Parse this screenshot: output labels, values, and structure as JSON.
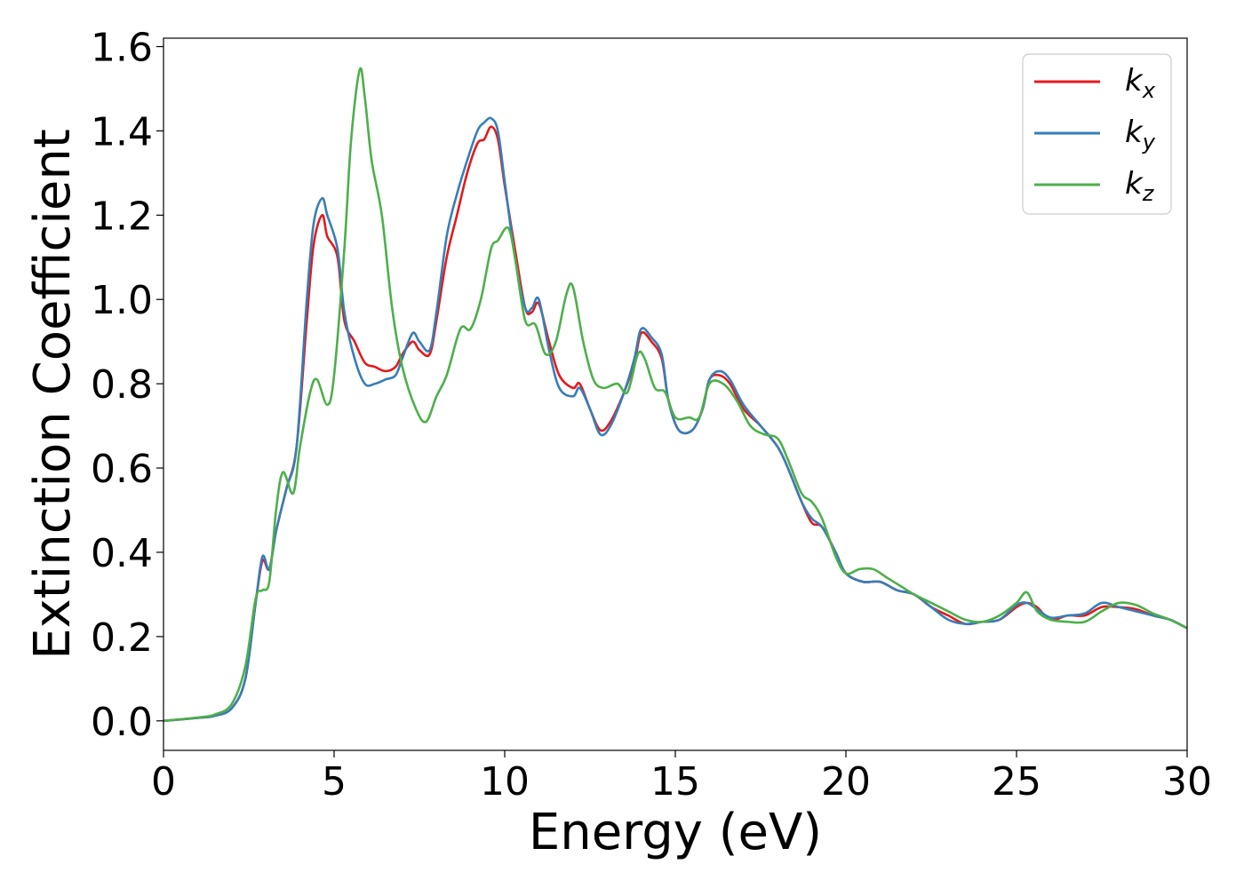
{
  "chart_data": {
    "type": "line",
    "title": "",
    "xlabel": "Energy (eV)",
    "ylabel": "Extinction Coefficient",
    "xlim": [
      0,
      30
    ],
    "ylim": [
      -0.07,
      1.62
    ],
    "xticks": [
      0,
      5,
      10,
      15,
      20,
      25,
      30
    ],
    "xtick_labels": [
      "0",
      "5",
      "10",
      "15",
      "20",
      "25",
      "30"
    ],
    "yticks": [
      0.0,
      0.2,
      0.4,
      0.6,
      0.8,
      1.0,
      1.2,
      1.4,
      1.6
    ],
    "ytick_labels": [
      "0.0",
      "0.2",
      "0.4",
      "0.6",
      "0.8",
      "1.0",
      "1.2",
      "1.4",
      "1.6"
    ],
    "grid": false,
    "legend_position": "top-right",
    "series": [
      {
        "name": "k_x",
        "label_base": "k",
        "label_sub": "x",
        "color": "#e41a1c",
        "points": [
          [
            0,
            0
          ],
          [
            1,
            0.007
          ],
          [
            1.5,
            0.012
          ],
          [
            2,
            0.03
          ],
          [
            2.4,
            0.1
          ],
          [
            2.7,
            0.28
          ],
          [
            2.9,
            0.38
          ],
          [
            3.1,
            0.36
          ],
          [
            3.3,
            0.45
          ],
          [
            3.6,
            0.55
          ],
          [
            3.9,
            0.65
          ],
          [
            4.2,
            0.95
          ],
          [
            4.4,
            1.13
          ],
          [
            4.65,
            1.2
          ],
          [
            4.8,
            1.15
          ],
          [
            5.1,
            1.1
          ],
          [
            5.3,
            0.95
          ],
          [
            5.6,
            0.9
          ],
          [
            5.9,
            0.85
          ],
          [
            6.2,
            0.84
          ],
          [
            6.5,
            0.83
          ],
          [
            6.8,
            0.84
          ],
          [
            7.0,
            0.87
          ],
          [
            7.3,
            0.9
          ],
          [
            7.5,
            0.88
          ],
          [
            7.8,
            0.87
          ],
          [
            8.0,
            0.95
          ],
          [
            8.3,
            1.1
          ],
          [
            8.6,
            1.2
          ],
          [
            8.9,
            1.3
          ],
          [
            9.2,
            1.37
          ],
          [
            9.4,
            1.38
          ],
          [
            9.6,
            1.41
          ],
          [
            9.8,
            1.38
          ],
          [
            10.0,
            1.27
          ],
          [
            10.3,
            1.12
          ],
          [
            10.6,
            0.98
          ],
          [
            10.8,
            0.97
          ],
          [
            11.0,
            0.99
          ],
          [
            11.3,
            0.9
          ],
          [
            11.6,
            0.82
          ],
          [
            12.0,
            0.79
          ],
          [
            12.2,
            0.8
          ],
          [
            12.5,
            0.74
          ],
          [
            12.8,
            0.69
          ],
          [
            13.1,
            0.71
          ],
          [
            13.5,
            0.78
          ],
          [
            13.8,
            0.85
          ],
          [
            14.0,
            0.92
          ],
          [
            14.3,
            0.9
          ],
          [
            14.6,
            0.86
          ],
          [
            14.8,
            0.76
          ],
          [
            15.1,
            0.69
          ],
          [
            15.5,
            0.69
          ],
          [
            15.8,
            0.74
          ],
          [
            16.0,
            0.81
          ],
          [
            16.3,
            0.82
          ],
          [
            16.6,
            0.8
          ],
          [
            17.0,
            0.74
          ],
          [
            17.5,
            0.7
          ],
          [
            18.0,
            0.65
          ],
          [
            18.3,
            0.6
          ],
          [
            18.7,
            0.52
          ],
          [
            19.0,
            0.47
          ],
          [
            19.3,
            0.46
          ],
          [
            19.7,
            0.4
          ],
          [
            20.0,
            0.35
          ],
          [
            20.5,
            0.33
          ],
          [
            21.0,
            0.33
          ],
          [
            21.5,
            0.31
          ],
          [
            22.0,
            0.3
          ],
          [
            22.5,
            0.27
          ],
          [
            23.0,
            0.25
          ],
          [
            23.5,
            0.23
          ],
          [
            24.0,
            0.235
          ],
          [
            24.5,
            0.24
          ],
          [
            25.0,
            0.27
          ],
          [
            25.3,
            0.28
          ],
          [
            25.6,
            0.27
          ],
          [
            26.0,
            0.24
          ],
          [
            26.5,
            0.25
          ],
          [
            27.0,
            0.25
          ],
          [
            27.5,
            0.27
          ],
          [
            28.0,
            0.27
          ],
          [
            28.5,
            0.265
          ],
          [
            29.0,
            0.25
          ],
          [
            29.5,
            0.24
          ],
          [
            30.0,
            0.22
          ]
        ]
      },
      {
        "name": "k_y",
        "label_base": "k",
        "label_sub": "y",
        "color": "#377eb8",
        "points": [
          [
            0,
            0
          ],
          [
            1,
            0.007
          ],
          [
            1.5,
            0.012
          ],
          [
            2,
            0.03
          ],
          [
            2.4,
            0.1
          ],
          [
            2.7,
            0.28
          ],
          [
            2.9,
            0.39
          ],
          [
            3.1,
            0.36
          ],
          [
            3.3,
            0.45
          ],
          [
            3.6,
            0.55
          ],
          [
            3.9,
            0.65
          ],
          [
            4.2,
            1.0
          ],
          [
            4.4,
            1.18
          ],
          [
            4.65,
            1.24
          ],
          [
            4.8,
            1.2
          ],
          [
            5.1,
            1.12
          ],
          [
            5.3,
            0.97
          ],
          [
            5.6,
            0.86
          ],
          [
            5.9,
            0.8
          ],
          [
            6.2,
            0.8
          ],
          [
            6.5,
            0.81
          ],
          [
            6.8,
            0.82
          ],
          [
            7.0,
            0.86
          ],
          [
            7.3,
            0.92
          ],
          [
            7.5,
            0.9
          ],
          [
            7.8,
            0.88
          ],
          [
            8.0,
            0.97
          ],
          [
            8.3,
            1.15
          ],
          [
            8.6,
            1.25
          ],
          [
            8.9,
            1.33
          ],
          [
            9.2,
            1.4
          ],
          [
            9.4,
            1.42
          ],
          [
            9.6,
            1.43
          ],
          [
            9.8,
            1.4
          ],
          [
            10.0,
            1.28
          ],
          [
            10.3,
            1.1
          ],
          [
            10.6,
            0.98
          ],
          [
            10.8,
            0.98
          ],
          [
            11.0,
            1.0
          ],
          [
            11.3,
            0.88
          ],
          [
            11.6,
            0.79
          ],
          [
            12.0,
            0.77
          ],
          [
            12.2,
            0.79
          ],
          [
            12.5,
            0.74
          ],
          [
            12.8,
            0.68
          ],
          [
            13.1,
            0.7
          ],
          [
            13.5,
            0.78
          ],
          [
            13.8,
            0.86
          ],
          [
            14.0,
            0.93
          ],
          [
            14.3,
            0.91
          ],
          [
            14.6,
            0.87
          ],
          [
            14.8,
            0.76
          ],
          [
            15.1,
            0.69
          ],
          [
            15.5,
            0.69
          ],
          [
            15.8,
            0.74
          ],
          [
            16.0,
            0.81
          ],
          [
            16.3,
            0.83
          ],
          [
            16.6,
            0.81
          ],
          [
            17.0,
            0.75
          ],
          [
            17.5,
            0.7
          ],
          [
            18.0,
            0.65
          ],
          [
            18.3,
            0.6
          ],
          [
            18.7,
            0.52
          ],
          [
            19.0,
            0.48
          ],
          [
            19.3,
            0.46
          ],
          [
            19.7,
            0.4
          ],
          [
            20.0,
            0.35
          ],
          [
            20.5,
            0.33
          ],
          [
            21.0,
            0.33
          ],
          [
            21.5,
            0.31
          ],
          [
            22.0,
            0.3
          ],
          [
            22.5,
            0.27
          ],
          [
            23.0,
            0.24
          ],
          [
            23.5,
            0.23
          ],
          [
            24.0,
            0.235
          ],
          [
            24.5,
            0.24
          ],
          [
            25.0,
            0.275
          ],
          [
            25.3,
            0.28
          ],
          [
            25.6,
            0.265
          ],
          [
            26.0,
            0.245
          ],
          [
            26.5,
            0.25
          ],
          [
            27.0,
            0.255
          ],
          [
            27.5,
            0.28
          ],
          [
            28.0,
            0.27
          ],
          [
            28.5,
            0.26
          ],
          [
            29.0,
            0.25
          ],
          [
            29.5,
            0.24
          ],
          [
            30.0,
            0.22
          ]
        ]
      },
      {
        "name": "k_z",
        "label_base": "k",
        "label_sub": "z",
        "color": "#4daf4a",
        "points": [
          [
            0,
            0
          ],
          [
            1,
            0.008
          ],
          [
            1.5,
            0.015
          ],
          [
            2,
            0.04
          ],
          [
            2.4,
            0.13
          ],
          [
            2.7,
            0.29
          ],
          [
            2.9,
            0.31
          ],
          [
            3.1,
            0.33
          ],
          [
            3.3,
            0.5
          ],
          [
            3.5,
            0.59
          ],
          [
            3.8,
            0.54
          ],
          [
            4.0,
            0.65
          ],
          [
            4.3,
            0.78
          ],
          [
            4.5,
            0.81
          ],
          [
            4.8,
            0.75
          ],
          [
            5.0,
            0.82
          ],
          [
            5.3,
            1.12
          ],
          [
            5.5,
            1.38
          ],
          [
            5.75,
            1.545
          ],
          [
            5.9,
            1.48
          ],
          [
            6.1,
            1.33
          ],
          [
            6.4,
            1.2
          ],
          [
            6.7,
            0.98
          ],
          [
            7.0,
            0.84
          ],
          [
            7.4,
            0.74
          ],
          [
            7.7,
            0.71
          ],
          [
            8.0,
            0.77
          ],
          [
            8.3,
            0.82
          ],
          [
            8.7,
            0.93
          ],
          [
            9.0,
            0.93
          ],
          [
            9.3,
            1.0
          ],
          [
            9.6,
            1.12
          ],
          [
            9.8,
            1.14
          ],
          [
            10.1,
            1.17
          ],
          [
            10.3,
            1.1
          ],
          [
            10.6,
            0.95
          ],
          [
            10.9,
            0.94
          ],
          [
            11.2,
            0.87
          ],
          [
            11.5,
            0.9
          ],
          [
            11.8,
            1.01
          ],
          [
            12.0,
            1.03
          ],
          [
            12.3,
            0.9
          ],
          [
            12.6,
            0.81
          ],
          [
            12.9,
            0.79
          ],
          [
            13.3,
            0.8
          ],
          [
            13.6,
            0.78
          ],
          [
            13.9,
            0.87
          ],
          [
            14.1,
            0.86
          ],
          [
            14.4,
            0.79
          ],
          [
            14.7,
            0.78
          ],
          [
            15.0,
            0.72
          ],
          [
            15.4,
            0.72
          ],
          [
            15.7,
            0.72
          ],
          [
            16.0,
            0.8
          ],
          [
            16.4,
            0.8
          ],
          [
            16.8,
            0.76
          ],
          [
            17.2,
            0.7
          ],
          [
            17.6,
            0.68
          ],
          [
            18.0,
            0.67
          ],
          [
            18.3,
            0.62
          ],
          [
            18.7,
            0.54
          ],
          [
            19.0,
            0.52
          ],
          [
            19.3,
            0.48
          ],
          [
            19.7,
            0.39
          ],
          [
            20.0,
            0.35
          ],
          [
            20.4,
            0.36
          ],
          [
            20.8,
            0.36
          ],
          [
            21.2,
            0.34
          ],
          [
            21.6,
            0.32
          ],
          [
            22.0,
            0.3
          ],
          [
            22.5,
            0.28
          ],
          [
            23.0,
            0.26
          ],
          [
            23.5,
            0.24
          ],
          [
            24.0,
            0.235
          ],
          [
            24.5,
            0.25
          ],
          [
            25.0,
            0.28
          ],
          [
            25.3,
            0.305
          ],
          [
            25.6,
            0.26
          ],
          [
            26.0,
            0.24
          ],
          [
            26.5,
            0.235
          ],
          [
            27.0,
            0.235
          ],
          [
            27.5,
            0.26
          ],
          [
            28.0,
            0.28
          ],
          [
            28.5,
            0.275
          ],
          [
            29.0,
            0.255
          ],
          [
            29.5,
            0.24
          ],
          [
            30.0,
            0.22
          ]
        ]
      }
    ]
  }
}
